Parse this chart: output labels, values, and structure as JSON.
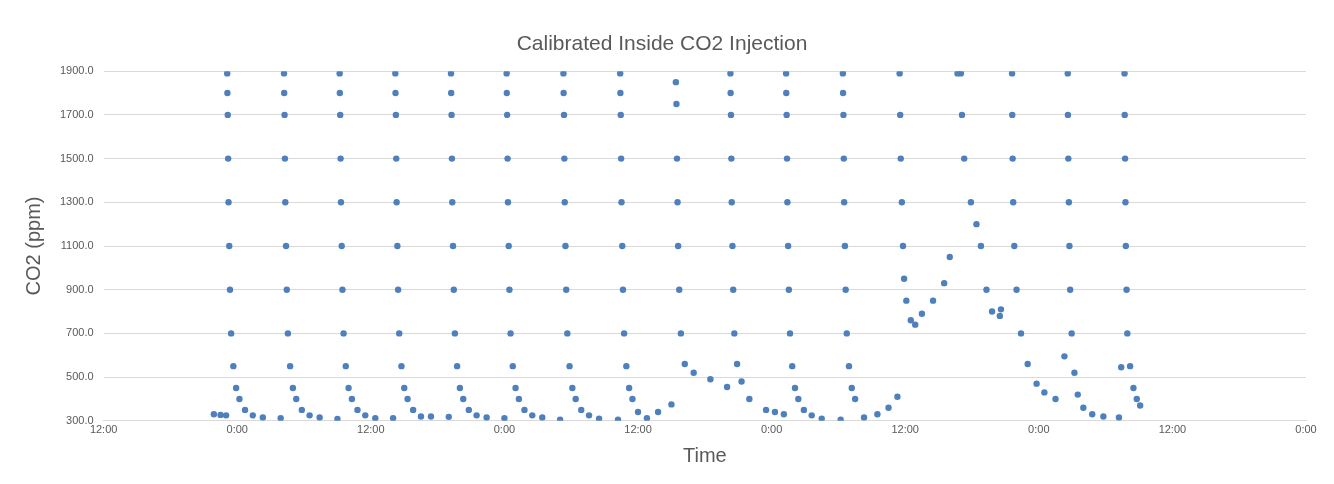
{
  "chart_data": {
    "type": "scatter",
    "title": "Calibrated Inside CO2 Injection",
    "xlabel": "Time",
    "ylabel": "CO2 (ppm)",
    "xlim": [
      "--01-01T12:00",
      "--01-06T00:00"
    ],
    "xticks": [
      {
        "value": "--01-01T12:00",
        "label": "12:00"
      },
      {
        "value": "--01-02T00:00",
        "label": "0:00"
      },
      {
        "value": "--01-02T12:00",
        "label": "12:00"
      },
      {
        "value": "--01-03T00:00",
        "label": "0:00"
      },
      {
        "value": "--01-03T12:00",
        "label": "12:00"
      },
      {
        "value": "--01-04T00:00",
        "label": "0:00"
      },
      {
        "value": "--01-04T12:00",
        "label": "12:00"
      },
      {
        "value": "--01-05T00:00",
        "label": "0:00"
      },
      {
        "value": "--01-05T12:00",
        "label": "12:00"
      },
      {
        "value": "--01-06T00:00",
        "label": "0:00"
      }
    ],
    "ylim": [
      300,
      1900
    ],
    "yticks": [
      {
        "value": 300,
        "label": "300.0"
      },
      {
        "value": 500,
        "label": "500.0"
      },
      {
        "value": 700,
        "label": "700.0"
      },
      {
        "value": 900,
        "label": "900.0"
      },
      {
        "value": 1100,
        "label": "1100.0"
      },
      {
        "value": 1300,
        "label": "1300.0"
      },
      {
        "value": 1500,
        "label": "1500.0"
      },
      {
        "value": 1700,
        "label": "1700.0"
      },
      {
        "value": 1900,
        "label": "1900.0"
      }
    ],
    "grid": "y",
    "legend": false,
    "marker": "circle",
    "series": [
      {
        "color": "#4e80bd",
        "x": [
          "--01-01T21:54",
          "--01-01T22:30",
          "--01-01T23:00",
          "--01-01T23:06",
          "--01-01T23:07",
          "--01-01T23:09",
          "--01-01T23:11",
          "--01-01T23:13",
          "--01-01T23:17",
          "--01-01T23:21",
          "--01-01T23:27",
          "--01-01T23:39",
          "--01-01T23:54",
          "--01-02T00:12",
          "--01-02T00:42",
          "--01-02T01:24",
          "--01-02T02:18",
          "--01-02T03:54",
          "--01-02T04:12",
          "--01-02T04:13",
          "--01-02T04:15",
          "--01-02T04:17",
          "--01-02T04:19",
          "--01-02T04:23",
          "--01-02T04:27",
          "--01-02T04:33",
          "--01-02T04:45",
          "--01-02T05:00",
          "--01-02T05:18",
          "--01-02T05:48",
          "--01-02T06:30",
          "--01-02T07:24",
          "--01-02T09:00",
          "--01-02T09:12",
          "--01-02T09:13",
          "--01-02T09:15",
          "--01-02T09:17",
          "--01-02T09:19",
          "--01-02T09:23",
          "--01-02T09:27",
          "--01-02T09:33",
          "--01-02T09:45",
          "--01-02T10:00",
          "--01-02T10:18",
          "--01-02T10:48",
          "--01-02T11:30",
          "--01-02T12:24",
          "--01-02T14:00",
          "--01-02T14:12",
          "--01-02T14:13",
          "--01-02T14:15",
          "--01-02T14:17",
          "--01-02T14:19",
          "--01-02T14:23",
          "--01-02T14:27",
          "--01-02T14:33",
          "--01-02T14:45",
          "--01-02T15:00",
          "--01-02T15:18",
          "--01-02T15:48",
          "--01-02T16:30",
          "--01-02T17:24",
          "--01-02T19:00",
          "--01-02T19:12",
          "--01-02T19:13",
          "--01-02T19:15",
          "--01-02T19:17",
          "--01-02T19:19",
          "--01-02T19:23",
          "--01-02T19:27",
          "--01-02T19:33",
          "--01-02T19:45",
          "--01-02T20:00",
          "--01-02T20:18",
          "--01-02T20:48",
          "--01-02T21:30",
          "--01-02T22:24",
          "--01-03T00:00",
          "--01-03T00:12",
          "--01-03T00:13",
          "--01-03T00:15",
          "--01-03T00:17",
          "--01-03T00:19",
          "--01-03T00:23",
          "--01-03T00:27",
          "--01-03T00:33",
          "--01-03T00:45",
          "--01-03T01:00",
          "--01-03T01:18",
          "--01-03T01:48",
          "--01-03T02:30",
          "--01-03T03:24",
          "--01-03T05:00",
          "--01-03T05:18",
          "--01-03T05:19",
          "--01-03T05:21",
          "--01-03T05:23",
          "--01-03T05:25",
          "--01-03T05:29",
          "--01-03T05:33",
          "--01-03T05:39",
          "--01-03T05:51",
          "--01-03T06:06",
          "--01-03T06:24",
          "--01-03T06:54",
          "--01-03T07:36",
          "--01-03T08:30",
          "--01-03T10:12",
          "--01-03T10:24",
          "--01-03T10:25",
          "--01-03T10:27",
          "--01-03T10:29",
          "--01-03T10:31",
          "--01-03T10:35",
          "--01-03T10:39",
          "--01-03T10:45",
          "--01-03T10:57",
          "--01-03T11:12",
          "--01-03T11:30",
          "--01-03T12:00",
          "--01-03T12:48",
          "--01-03T13:48",
          "--01-03T15:00",
          "--01-03T15:24",
          "--01-03T15:27",
          "--01-03T15:30",
          "--01-03T15:33",
          "--01-03T15:36",
          "--01-03T15:42",
          "--01-03T15:51",
          "--01-03T16:12",
          "--01-03T17:00",
          "--01-03T18:30",
          "--01-03T20:00",
          "--01-03T20:18",
          "--01-03T20:19",
          "--01-03T20:21",
          "--01-03T20:23",
          "--01-03T20:25",
          "--01-03T20:29",
          "--01-03T20:33",
          "--01-03T20:39",
          "--01-03T20:54",
          "--01-03T21:18",
          "--01-03T22:00",
          "--01-03T23:30",
          "--01-04T00:18",
          "--01-04T01:06",
          "--01-04T01:18",
          "--01-04T01:19",
          "--01-04T01:21",
          "--01-04T01:23",
          "--01-04T01:25",
          "--01-04T01:29",
          "--01-04T01:33",
          "--01-04T01:39",
          "--01-04T01:51",
          "--01-04T02:06",
          "--01-04T02:24",
          "--01-04T02:54",
          "--01-04T03:36",
          "--01-04T04:30",
          "--01-04T06:12",
          "--01-04T06:24",
          "--01-04T06:25",
          "--01-04T06:27",
          "--01-04T06:29",
          "--01-04T06:31",
          "--01-04T06:35",
          "--01-04T06:39",
          "--01-04T06:45",
          "--01-04T06:57",
          "--01-04T07:12",
          "--01-04T07:30",
          "--01-04T08:18",
          "--01-04T09:30",
          "--01-04T10:30",
          "--01-04T11:18",
          "--01-04T11:30",
          "--01-04T11:33",
          "--01-04T11:36",
          "--01-04T11:42",
          "--01-04T11:48",
          "--01-04T11:54",
          "--01-04T12:06",
          "--01-04T12:30",
          "--01-04T12:54",
          "--01-04T13:30",
          "--01-04T14:30",
          "--01-04T15:30",
          "--01-04T16:00",
          "--01-04T16:42",
          "--01-04T17:00",
          "--01-04T17:06",
          "--01-04T17:18",
          "--01-04T17:54",
          "--01-04T18:24",
          "--01-04T18:48",
          "--01-04T19:18",
          "--01-04T19:48",
          "--01-04T20:30",
          "--01-04T20:36",
          "--01-04T21:36",
          "--01-04T21:37",
          "--01-04T21:39",
          "--01-04T21:42",
          "--01-04T21:48",
          "--01-04T22:00",
          "--01-04T22:24",
          "--01-04T23:00",
          "--01-04T23:48",
          "--01-05T00:30",
          "--01-05T01:30",
          "--01-05T02:18",
          "--01-05T02:36",
          "--01-05T02:37",
          "--01-05T02:39",
          "--01-05T02:42",
          "--01-05T02:45",
          "--01-05T02:49",
          "--01-05T02:57",
          "--01-05T03:12",
          "--01-05T03:30",
          "--01-05T04:00",
          "--01-05T04:48",
          "--01-05T05:48",
          "--01-05T07:12",
          "--01-05T07:24",
          "--01-05T07:42",
          "--01-05T07:43",
          "--01-05T07:45",
          "--01-05T07:47",
          "--01-05T07:49",
          "--01-05T07:53",
          "--01-05T07:57",
          "--01-05T08:12",
          "--01-05T08:30",
          "--01-05T08:48",
          "--01-05T09:06"
        ],
        "values": [
          330,
          327,
          325,
          1890,
          1800,
          1700,
          1500,
          1300,
          1100,
          900,
          700,
          550,
          450,
          400,
          350,
          325,
          315,
          312,
          1890,
          1800,
          1700,
          1500,
          1300,
          1100,
          900,
          700,
          550,
          450,
          400,
          350,
          325,
          315,
          308,
          1890,
          1800,
          1700,
          1500,
          1300,
          1100,
          900,
          700,
          550,
          450,
          400,
          350,
          325,
          312,
          312,
          1890,
          1800,
          1700,
          1500,
          1300,
          1100,
          900,
          700,
          550,
          450,
          400,
          350,
          320,
          320,
          318,
          1890,
          1800,
          1700,
          1500,
          1300,
          1100,
          900,
          700,
          550,
          450,
          400,
          350,
          325,
          315,
          312,
          1890,
          1800,
          1700,
          1500,
          1300,
          1100,
          900,
          700,
          550,
          450,
          400,
          350,
          325,
          315,
          305,
          1890,
          1800,
          1700,
          1500,
          1300,
          1100,
          900,
          700,
          550,
          450,
          400,
          350,
          325,
          310,
          305,
          1890,
          1800,
          1700,
          1500,
          1300,
          1100,
          900,
          700,
          550,
          450,
          400,
          340,
          312,
          340,
          375,
          1850,
          1750,
          1500,
          1300,
          1100,
          900,
          700,
          560,
          520,
          490,
          455,
          1890,
          1800,
          1700,
          1500,
          1300,
          1100,
          900,
          700,
          560,
          480,
          400,
          350,
          340,
          330,
          1890,
          1800,
          1700,
          1500,
          1300,
          1100,
          900,
          700,
          550,
          450,
          400,
          350,
          325,
          310,
          305,
          1890,
          1800,
          1700,
          1500,
          1300,
          1100,
          900,
          700,
          550,
          450,
          400,
          315,
          330,
          360,
          410,
          1890,
          1700,
          1500,
          1300,
          1100,
          950,
          850,
          760,
          740,
          790,
          850,
          930,
          1050,
          1890,
          1890,
          1700,
          1500,
          1300,
          1200,
          1100,
          900,
          800,
          780,
          810,
          1890,
          1700,
          1500,
          1300,
          1100,
          900,
          700,
          560,
          470,
          430,
          400,
          595,
          1890,
          1700,
          1500,
          1300,
          1100,
          900,
          700,
          520,
          420,
          360,
          330,
          320,
          315,
          545,
          1890,
          1700,
          1500,
          1300,
          1100,
          900,
          700,
          550,
          450,
          400,
          370
        ]
      }
    ]
  }
}
